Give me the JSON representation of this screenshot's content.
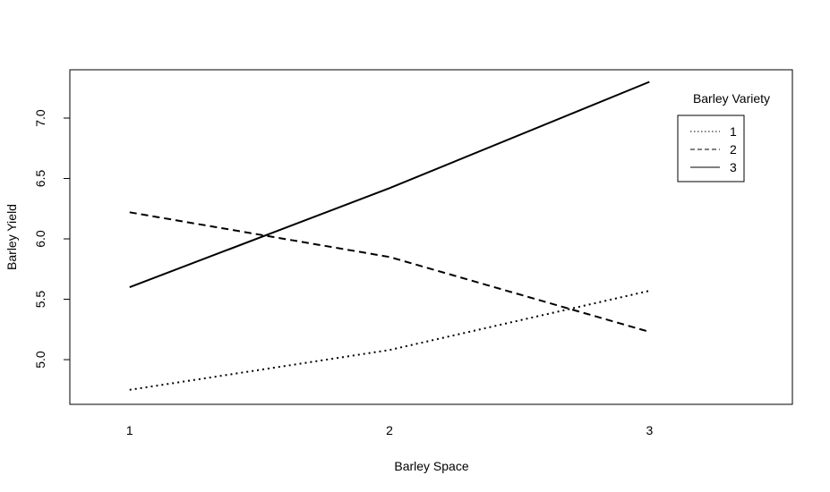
{
  "chart_data": {
    "type": "line",
    "title": "",
    "xlabel": "Barley Space",
    "ylabel": "Barley Yield",
    "x": [
      1,
      2,
      3
    ],
    "x_tick_labels": [
      "1",
      "2",
      "3"
    ],
    "xlim": [
      0.77,
      3.55
    ],
    "ylim": [
      4.63,
      7.4
    ],
    "y_ticks": [
      5.0,
      5.5,
      6.0,
      6.5,
      7.0
    ],
    "y_tick_labels": [
      "5.0",
      "5.5",
      "6.0",
      "6.5",
      "7.0"
    ],
    "grid": false,
    "legend": {
      "title": "Barley Variety",
      "position": "top-right"
    },
    "series": [
      {
        "name": "1",
        "style": "dotted",
        "values": [
          4.75,
          5.08,
          5.57
        ]
      },
      {
        "name": "2",
        "style": "dashed",
        "values": [
          6.22,
          5.85,
          5.23
        ]
      },
      {
        "name": "3",
        "style": "solid",
        "values": [
          5.6,
          6.42,
          7.3
        ]
      }
    ]
  }
}
